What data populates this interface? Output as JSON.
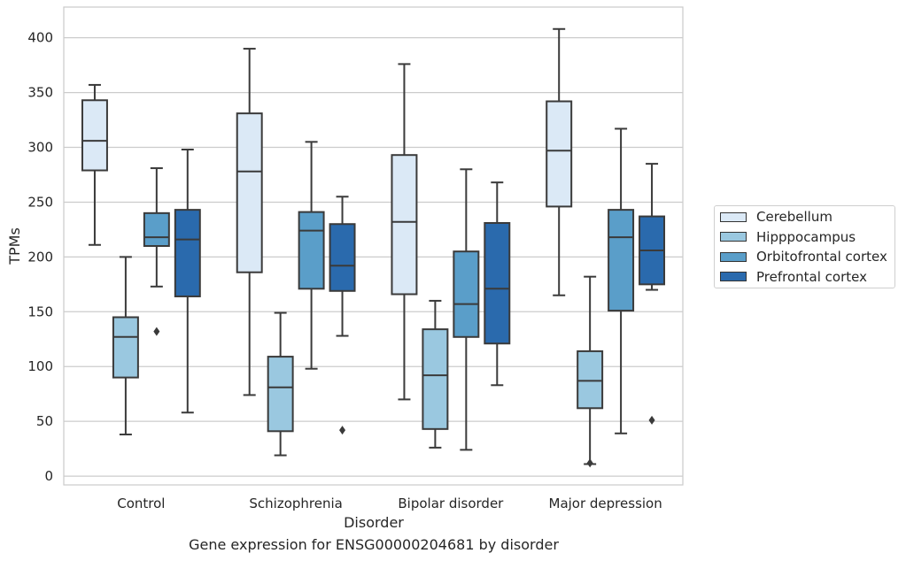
{
  "chart_data": {
    "type": "box",
    "xlabel": "Disorder",
    "ylabel": "TPMs",
    "ylim": [
      -8,
      428
    ],
    "yticks": [
      0,
      50,
      100,
      150,
      200,
      250,
      300,
      350,
      400
    ],
    "grid": true,
    "legend_position": "right",
    "categories": [
      "Control",
      "Schizophrenia",
      "Bipolar disorder",
      "Major depression"
    ],
    "series": [
      {
        "name": "Cerebellum",
        "color": "#dbe9f6",
        "boxes": [
          {
            "min": 211,
            "q1": 279,
            "median": 306,
            "q3": 343,
            "max": 357,
            "outliers": []
          },
          {
            "min": 74,
            "q1": 186,
            "median": 278,
            "q3": 331,
            "max": 390,
            "outliers": []
          },
          {
            "min": 70,
            "q1": 166,
            "median": 232,
            "q3": 293,
            "max": 376,
            "outliers": []
          },
          {
            "min": 165,
            "q1": 246,
            "median": 297,
            "q3": 342,
            "max": 408,
            "outliers": []
          }
        ]
      },
      {
        "name": "Hipppocampus",
        "color": "#9ac8e0",
        "boxes": [
          {
            "min": 38,
            "q1": 90,
            "median": 127,
            "q3": 145,
            "max": 200,
            "outliers": []
          },
          {
            "min": 19,
            "q1": 41,
            "median": 81,
            "q3": 109,
            "max": 149,
            "outliers": []
          },
          {
            "min": 26,
            "q1": 43,
            "median": 92,
            "q3": 134,
            "max": 160,
            "outliers": []
          },
          {
            "min": 11,
            "q1": 62,
            "median": 87,
            "q3": 114,
            "max": 182,
            "outliers": [
              12
            ]
          }
        ]
      },
      {
        "name": "Orbitofrontal cortex",
        "color": "#5a9ec9",
        "boxes": [
          {
            "min": 173,
            "q1": 210,
            "median": 218,
            "q3": 240,
            "max": 281,
            "outliers": [
              132
            ]
          },
          {
            "min": 98,
            "q1": 171,
            "median": 224,
            "q3": 241,
            "max": 305,
            "outliers": []
          },
          {
            "min": 24,
            "q1": 127,
            "median": 157,
            "q3": 205,
            "max": 280,
            "outliers": []
          },
          {
            "min": 39,
            "q1": 151,
            "median": 218,
            "q3": 243,
            "max": 317,
            "outliers": []
          }
        ]
      },
      {
        "name": "Prefrontal cortex",
        "color": "#2a6aad",
        "boxes": [
          {
            "min": 58,
            "q1": 164,
            "median": 216,
            "q3": 243,
            "max": 298,
            "outliers": []
          },
          {
            "min": 128,
            "q1": 169,
            "median": 192,
            "q3": 230,
            "max": 255,
            "outliers": [
              42
            ]
          },
          {
            "min": 83,
            "q1": 121,
            "median": 171,
            "q3": 231,
            "max": 268,
            "outliers": []
          },
          {
            "min": 170,
            "q1": 175,
            "median": 206,
            "q3": 237,
            "max": 285,
            "outliers": [
              51
            ]
          }
        ]
      }
    ],
    "caption": "Gene expression for ENSG00000204681 by disorder"
  }
}
